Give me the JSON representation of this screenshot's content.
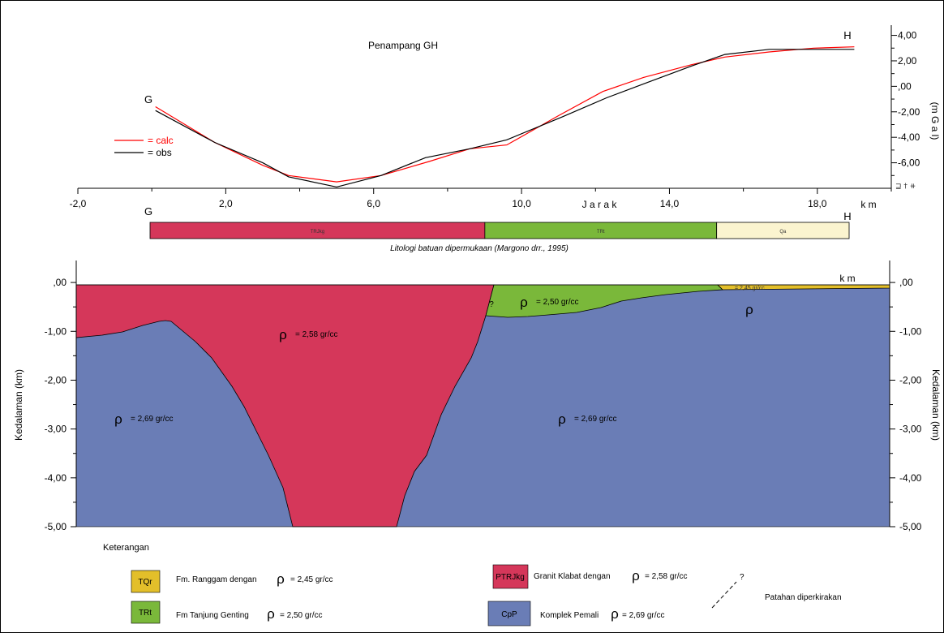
{
  "chart_data": [
    {
      "type": "line",
      "title": "Penampang GH",
      "xlabel": "J a r a k",
      "xunit": "k m",
      "ylabel": "(m G a l)",
      "xlim": [
        -2,
        20
      ],
      "ylim": [
        -8,
        4.8
      ],
      "x_ticks": [
        "-2,0",
        "2,0",
        "6,0",
        "10,0",
        "14,0",
        "18,0"
      ],
      "x_tick_values": [
        -2,
        2,
        6,
        10,
        14,
        18
      ],
      "y_ticks": [
        "4,00",
        "2,00",
        ",00",
        "-2,00",
        "-4,00",
        "-6,00"
      ],
      "y_tick_values": [
        4,
        2,
        0,
        -2,
        -4,
        -6
      ],
      "point_labels": {
        "start": "G",
        "end": "H"
      },
      "legend_position": "left",
      "series": [
        {
          "name": "= calc",
          "color": "#ff0000",
          "x": [
            0.1,
            1.7,
            3.0,
            3.7,
            5.0,
            6.2,
            7.5,
            8.6,
            9.6,
            11.0,
            12.2,
            13.3,
            14.6,
            15.5,
            16.7,
            17.9,
            19.0
          ],
          "y": [
            -1.6,
            -4.4,
            -6.2,
            -7.0,
            -7.5,
            -7.0,
            -5.9,
            -4.9,
            -4.6,
            -2.3,
            -0.4,
            0.7,
            1.7,
            2.3,
            2.7,
            3.0,
            3.1
          ]
        },
        {
          "name": "= obs",
          "color": "#000000",
          "x": [
            0.1,
            1.7,
            3.0,
            3.7,
            5.0,
            6.2,
            7.4,
            8.6,
            9.6,
            11.1,
            12.3,
            13.4,
            14.6,
            15.5,
            16.7,
            17.9,
            19.0
          ],
          "y": [
            -1.9,
            -4.4,
            -6.0,
            -7.1,
            -7.9,
            -7.0,
            -5.6,
            -4.9,
            -4.2,
            -2.4,
            -0.9,
            0.3,
            1.6,
            2.5,
            2.9,
            2.9,
            2.9
          ]
        }
      ]
    },
    {
      "type": "area",
      "ylabel": "Kedalaman (km)",
      "xunit": "k m",
      "ylim": [
        -5,
        0.45
      ],
      "y_ticks": [
        ",00",
        "-1,00",
        "-2,00",
        "-3,00",
        "-4,00",
        "-5,00"
      ],
      "y_tick_values": [
        0,
        -1,
        -2,
        -3,
        -4,
        -5
      ],
      "surface_strip": {
        "start_label": "G",
        "end_label": "H",
        "caption": "Litologi batuan dipermukaan (Margono drr., 1995)",
        "units": [
          {
            "label": "TRJkg",
            "from": 0.0,
            "to": 9.1,
            "color": "#d5375a"
          },
          {
            "label": "TRt",
            "from": 9.1,
            "to": 15.4,
            "color": "#7ab83a"
          },
          {
            "label": "Qa",
            "from": 15.4,
            "to": 19.0,
            "color": "#fbf4cf"
          }
        ]
      },
      "bodies": [
        {
          "name": "Komplek Pemali",
          "density_label": "= 2,69 gr/cc",
          "color": "#6a7db6"
        },
        {
          "name": "Granit Klabat",
          "density_label": "= 2,58 gr/cc",
          "color": "#d5375a"
        },
        {
          "name": "Fm Tanjung Genting",
          "density_label": "= 2,50 gr/cc",
          "color": "#7ab83a"
        },
        {
          "name": "Fm. Ranggam",
          "density_label": "= 2,45 gr/cc",
          "color": "#e3bf2a"
        }
      ],
      "density_annotations": [
        {
          "symbol": "ρ",
          "text": "= 2,69 gr/cc",
          "body": "Komplek Pemali west"
        },
        {
          "symbol": "ρ",
          "text": "= 2,58 gr/cc",
          "body": "Granit Klabat"
        },
        {
          "symbol": "ρ",
          "text": "= 2,50 gr/cc",
          "body": "Fm Tanjung Genting"
        },
        {
          "symbol": "ρ",
          "text": "= 2,69 gr/cc",
          "body": "Komplek Pemali east"
        },
        {
          "symbol": "",
          "text": "= 2,45 gr/cc",
          "body": "Fm. Ranggam"
        },
        {
          "symbol": "ρ",
          "text": "",
          "body": "Komplek Pemali east small"
        }
      ],
      "uncertain_mark": "?"
    }
  ],
  "legend": {
    "title": "Keterangan",
    "items": [
      {
        "code": "TQr",
        "text": "Fm.  Ranggam dengan",
        "rho": "ρ",
        "value": "= 2,45 gr/cc",
        "color": "#e3bf2a"
      },
      {
        "code": "TRt",
        "text": "Fm  Tanjung Genting",
        "rho": "ρ",
        "value": "= 2,50 gr/cc",
        "color": "#7ab83a"
      },
      {
        "code": "PTRJkg",
        "text": "Granit Klabat dengan",
        "rho": "ρ",
        "value": "= 2,58 gr/cc",
        "color": "#d5375a"
      },
      {
        "code": "CpP",
        "text": "Komplek Pemali",
        "rho": "ρ",
        "value": "= 2,69 gr/cc",
        "color": "#6a7db6"
      }
    ],
    "fault_mark": "?",
    "fault_text": "Patahan diperkirakan"
  }
}
